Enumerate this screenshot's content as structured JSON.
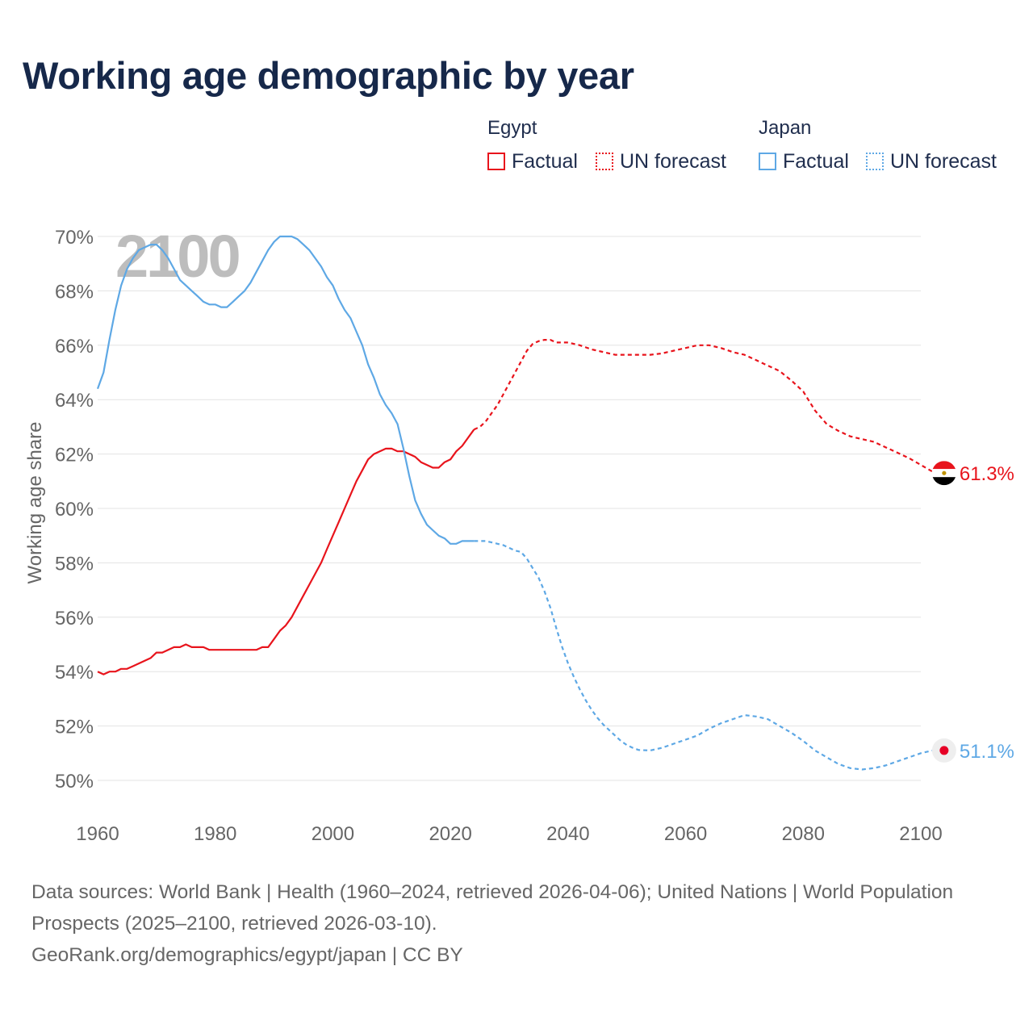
{
  "title": "Working age demographic by year",
  "legend": {
    "groups": [
      {
        "name": "Egypt",
        "color": "#e8141c",
        "items": [
          {
            "label": "Factual",
            "style": "solid"
          },
          {
            "label": "UN forecast",
            "style": "dotted"
          }
        ]
      },
      {
        "name": "Japan",
        "color": "#5ea8e5",
        "items": [
          {
            "label": "Factual",
            "style": "solid"
          },
          {
            "label": "UN forecast",
            "style": "dotted"
          }
        ]
      }
    ]
  },
  "chart_data": {
    "type": "line",
    "title": "Working age demographic by year",
    "ylabel": "Working age share",
    "xlabel": "",
    "xlim": [
      1960,
      2100
    ],
    "ylim": [
      50,
      70
    ],
    "x_ticks": [
      "1960",
      "1980",
      "2000",
      "2020",
      "2040",
      "2060",
      "2080",
      "2100"
    ],
    "y_ticks": [
      "50%",
      "52%",
      "54%",
      "56%",
      "58%",
      "60%",
      "62%",
      "64%",
      "66%",
      "68%",
      "70%"
    ],
    "year_overlay": "2100",
    "factual_range": [
      1960,
      2024
    ],
    "forecast_range": [
      2024,
      2100
    ],
    "series": [
      {
        "name": "Egypt",
        "color": "#e8141c",
        "end_label": "61.3%",
        "points": [
          [
            1960,
            54.0
          ],
          [
            1961,
            53.9
          ],
          [
            1962,
            54.0
          ],
          [
            1963,
            54.0
          ],
          [
            1964,
            54.1
          ],
          [
            1965,
            54.1
          ],
          [
            1966,
            54.2
          ],
          [
            1967,
            54.3
          ],
          [
            1968,
            54.4
          ],
          [
            1969,
            54.5
          ],
          [
            1970,
            54.7
          ],
          [
            1971,
            54.7
          ],
          [
            1972,
            54.8
          ],
          [
            1973,
            54.9
          ],
          [
            1974,
            54.9
          ],
          [
            1975,
            55.0
          ],
          [
            1976,
            54.9
          ],
          [
            1977,
            54.9
          ],
          [
            1978,
            54.9
          ],
          [
            1979,
            54.8
          ],
          [
            1980,
            54.8
          ],
          [
            1981,
            54.8
          ],
          [
            1982,
            54.8
          ],
          [
            1983,
            54.8
          ],
          [
            1984,
            54.8
          ],
          [
            1985,
            54.8
          ],
          [
            1986,
            54.8
          ],
          [
            1987,
            54.8
          ],
          [
            1988,
            54.9
          ],
          [
            1989,
            54.9
          ],
          [
            1990,
            55.2
          ],
          [
            1991,
            55.5
          ],
          [
            1992,
            55.7
          ],
          [
            1993,
            56.0
          ],
          [
            1994,
            56.4
          ],
          [
            1995,
            56.8
          ],
          [
            1996,
            57.2
          ],
          [
            1997,
            57.6
          ],
          [
            1998,
            58.0
          ],
          [
            1999,
            58.5
          ],
          [
            2000,
            59.0
          ],
          [
            2001,
            59.5
          ],
          [
            2002,
            60.0
          ],
          [
            2003,
            60.5
          ],
          [
            2004,
            61.0
          ],
          [
            2005,
            61.4
          ],
          [
            2006,
            61.8
          ],
          [
            2007,
            62.0
          ],
          [
            2008,
            62.1
          ],
          [
            2009,
            62.2
          ],
          [
            2010,
            62.2
          ],
          [
            2011,
            62.1
          ],
          [
            2012,
            62.1
          ],
          [
            2013,
            62.0
          ],
          [
            2014,
            61.9
          ],
          [
            2015,
            61.7
          ],
          [
            2016,
            61.6
          ],
          [
            2017,
            61.5
          ],
          [
            2018,
            61.5
          ],
          [
            2019,
            61.7
          ],
          [
            2020,
            61.8
          ],
          [
            2021,
            62.1
          ],
          [
            2022,
            62.3
          ],
          [
            2023,
            62.6
          ],
          [
            2024,
            62.9
          ],
          [
            2025,
            63.0
          ],
          [
            2026,
            63.2
          ],
          [
            2027,
            63.5
          ],
          [
            2028,
            63.8
          ],
          [
            2029,
            64.2
          ],
          [
            2030,
            64.6
          ],
          [
            2031,
            65.0
          ],
          [
            2032,
            65.4
          ],
          [
            2033,
            65.8
          ],
          [
            2034,
            66.05
          ],
          [
            2035,
            66.15
          ],
          [
            2036,
            66.2
          ],
          [
            2037,
            66.2
          ],
          [
            2038,
            66.1
          ],
          [
            2040,
            66.1
          ],
          [
            2042,
            66.0
          ],
          [
            2044,
            65.85
          ],
          [
            2046,
            65.75
          ],
          [
            2048,
            65.65
          ],
          [
            2050,
            65.65
          ],
          [
            2052,
            65.65
          ],
          [
            2054,
            65.65
          ],
          [
            2056,
            65.7
          ],
          [
            2058,
            65.8
          ],
          [
            2060,
            65.9
          ],
          [
            2062,
            66.0
          ],
          [
            2064,
            66.0
          ],
          [
            2066,
            65.9
          ],
          [
            2068,
            65.75
          ],
          [
            2070,
            65.65
          ],
          [
            2072,
            65.45
          ],
          [
            2074,
            65.25
          ],
          [
            2076,
            65.05
          ],
          [
            2078,
            64.7
          ],
          [
            2080,
            64.3
          ],
          [
            2082,
            63.6
          ],
          [
            2084,
            63.1
          ],
          [
            2086,
            62.85
          ],
          [
            2088,
            62.65
          ],
          [
            2090,
            62.55
          ],
          [
            2092,
            62.45
          ],
          [
            2094,
            62.25
          ],
          [
            2096,
            62.05
          ],
          [
            2098,
            61.85
          ],
          [
            2100,
            61.6
          ],
          [
            2102,
            61.35
          ],
          [
            2103,
            61.3
          ]
        ]
      },
      {
        "name": "Japan",
        "color": "#5ea8e5",
        "end_label": "51.1%",
        "points": [
          [
            1960,
            64.4
          ],
          [
            1961,
            65.0
          ],
          [
            1962,
            66.2
          ],
          [
            1963,
            67.3
          ],
          [
            1964,
            68.2
          ],
          [
            1965,
            68.8
          ],
          [
            1966,
            69.2
          ],
          [
            1967,
            69.5
          ],
          [
            1968,
            69.6
          ],
          [
            1969,
            69.7
          ],
          [
            1970,
            69.7
          ],
          [
            1971,
            69.5
          ],
          [
            1972,
            69.2
          ],
          [
            1973,
            68.8
          ],
          [
            1974,
            68.4
          ],
          [
            1975,
            68.2
          ],
          [
            1976,
            68.0
          ],
          [
            1977,
            67.8
          ],
          [
            1978,
            67.6
          ],
          [
            1979,
            67.5
          ],
          [
            1980,
            67.5
          ],
          [
            1981,
            67.4
          ],
          [
            1982,
            67.4
          ],
          [
            1983,
            67.6
          ],
          [
            1984,
            67.8
          ],
          [
            1985,
            68.0
          ],
          [
            1986,
            68.3
          ],
          [
            1987,
            68.7
          ],
          [
            1988,
            69.1
          ],
          [
            1989,
            69.5
          ],
          [
            1990,
            69.8
          ],
          [
            1991,
            70.0
          ],
          [
            1992,
            70.0
          ],
          [
            1993,
            70.0
          ],
          [
            1994,
            69.9
          ],
          [
            1995,
            69.7
          ],
          [
            1996,
            69.5
          ],
          [
            1997,
            69.2
          ],
          [
            1998,
            68.9
          ],
          [
            1999,
            68.5
          ],
          [
            2000,
            68.2
          ],
          [
            2001,
            67.7
          ],
          [
            2002,
            67.3
          ],
          [
            2003,
            67.0
          ],
          [
            2004,
            66.5
          ],
          [
            2005,
            66.0
          ],
          [
            2006,
            65.3
          ],
          [
            2007,
            64.8
          ],
          [
            2008,
            64.2
          ],
          [
            2009,
            63.8
          ],
          [
            2010,
            63.5
          ],
          [
            2011,
            63.1
          ],
          [
            2012,
            62.2
          ],
          [
            2013,
            61.2
          ],
          [
            2014,
            60.3
          ],
          [
            2015,
            59.8
          ],
          [
            2016,
            59.4
          ],
          [
            2017,
            59.2
          ],
          [
            2018,
            59.0
          ],
          [
            2019,
            58.9
          ],
          [
            2020,
            58.7
          ],
          [
            2021,
            58.7
          ],
          [
            2022,
            58.8
          ],
          [
            2023,
            58.8
          ],
          [
            2024,
            58.8
          ],
          [
            2025,
            58.8
          ],
          [
            2026,
            58.8
          ],
          [
            2027,
            58.75
          ],
          [
            2028,
            58.7
          ],
          [
            2029,
            58.65
          ],
          [
            2030,
            58.55
          ],
          [
            2031,
            58.45
          ],
          [
            2032,
            58.4
          ],
          [
            2033,
            58.15
          ],
          [
            2034,
            57.8
          ],
          [
            2035,
            57.45
          ],
          [
            2036,
            56.95
          ],
          [
            2037,
            56.35
          ],
          [
            2038,
            55.6
          ],
          [
            2039,
            54.9
          ],
          [
            2040,
            54.3
          ],
          [
            2041,
            53.8
          ],
          [
            2042,
            53.35
          ],
          [
            2043,
            52.95
          ],
          [
            2044,
            52.6
          ],
          [
            2045,
            52.3
          ],
          [
            2046,
            52.05
          ],
          [
            2047,
            51.85
          ],
          [
            2048,
            51.65
          ],
          [
            2049,
            51.45
          ],
          [
            2050,
            51.3
          ],
          [
            2051,
            51.2
          ],
          [
            2052,
            51.12
          ],
          [
            2054,
            51.1
          ],
          [
            2056,
            51.2
          ],
          [
            2058,
            51.35
          ],
          [
            2060,
            51.5
          ],
          [
            2062,
            51.65
          ],
          [
            2064,
            51.9
          ],
          [
            2066,
            52.1
          ],
          [
            2068,
            52.25
          ],
          [
            2070,
            52.4
          ],
          [
            2072,
            52.35
          ],
          [
            2074,
            52.25
          ],
          [
            2076,
            52.0
          ],
          [
            2078,
            51.75
          ],
          [
            2080,
            51.45
          ],
          [
            2082,
            51.1
          ],
          [
            2084,
            50.85
          ],
          [
            2086,
            50.6
          ],
          [
            2088,
            50.45
          ],
          [
            2090,
            50.4
          ],
          [
            2092,
            50.45
          ],
          [
            2094,
            50.55
          ],
          [
            2096,
            50.7
          ],
          [
            2098,
            50.85
          ],
          [
            2100,
            51.0
          ],
          [
            2102,
            51.1
          ],
          [
            2103,
            51.1
          ]
        ]
      }
    ]
  },
  "source": {
    "line1": "Data sources: World Bank | Health (1960–2024, retrieved 2026-04-06); United Nations | World Population Prospects (2025–2100, retrieved 2026-03-10).",
    "line2": "GeoRank.org/demographics/egypt/japan | CC BY"
  }
}
